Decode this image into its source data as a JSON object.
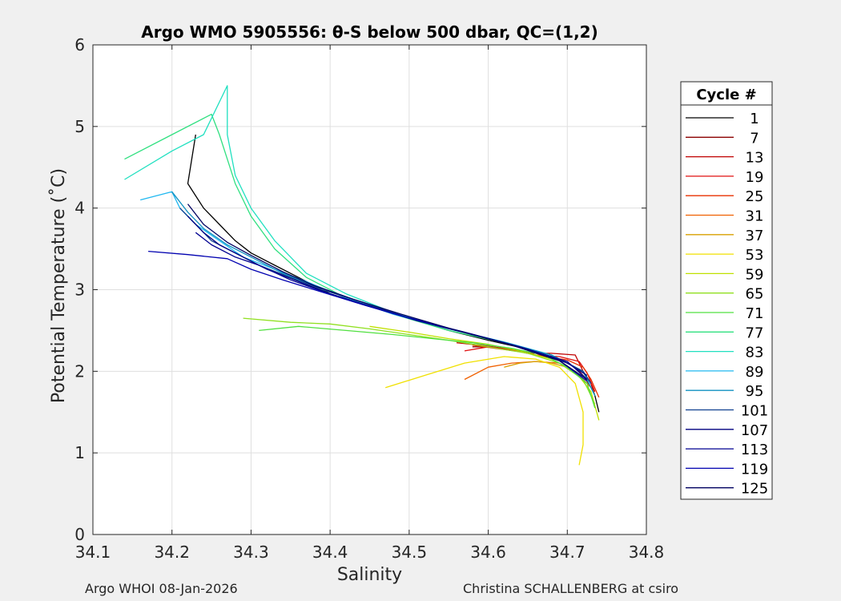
{
  "chart_data": {
    "type": "line",
    "title": "Argo WMO 5905556: θ-S below 500 dbar,  QC=(1,2)",
    "xlabel": "Salinity",
    "ylabel": "Potential Temperature (˚C)",
    "xlim": [
      34.1,
      34.8
    ],
    "ylim": [
      0,
      6
    ],
    "xticks": [
      "34.1",
      "34.2",
      "34.3",
      "34.4",
      "34.5",
      "34.6",
      "34.7",
      "34.8"
    ],
    "yticks": [
      "0",
      "1",
      "2",
      "3",
      "4",
      "5",
      "6"
    ],
    "grid": true,
    "legend": {
      "title": "Cycle #",
      "placement": "right-outside",
      "entries": [
        "1",
        "7",
        "13",
        "19",
        "25",
        "31",
        "37",
        "53",
        "59",
        "65",
        "71",
        "77",
        "83",
        "89",
        "95",
        "101",
        "107",
        "113",
        "119",
        "125"
      ],
      "colors": [
        "#000000",
        "#8b0000",
        "#c00000",
        "#e01010",
        "#e83000",
        "#f06000",
        "#d8a000",
        "#f0e000",
        "#c0e000",
        "#90e020",
        "#50e040",
        "#30e080",
        "#20e0c0",
        "#20b8f0",
        "#1090c0",
        "#104090",
        "#000080",
        "#000090",
        "#0000b0",
        "#000060"
      ]
    },
    "series": [
      {
        "name": "1",
        "x": [
          34.23,
          34.22,
          34.24,
          34.26,
          34.28,
          34.3,
          34.33,
          34.36,
          34.4,
          34.45,
          34.5,
          34.55,
          34.6,
          34.65,
          34.69,
          34.72,
          34.73,
          34.735,
          34.74
        ],
        "y": [
          4.9,
          4.3,
          4.0,
          3.8,
          3.6,
          3.45,
          3.3,
          3.15,
          2.95,
          2.8,
          2.65,
          2.5,
          2.38,
          2.27,
          2.15,
          2.0,
          1.85,
          1.7,
          1.5
        ]
      },
      {
        "name": "7",
        "x": [
          34.58,
          34.6,
          34.63,
          34.66,
          34.69,
          34.71,
          34.72,
          34.73
        ],
        "y": [
          2.3,
          2.3,
          2.27,
          2.22,
          2.15,
          2.05,
          1.95,
          1.8
        ]
      },
      {
        "name": "13",
        "x": [
          34.56,
          34.59,
          34.62,
          34.65,
          34.68,
          34.71,
          34.72,
          34.73,
          34.735
        ],
        "y": [
          2.35,
          2.32,
          2.28,
          2.22,
          2.22,
          2.2,
          2.0,
          1.85,
          1.7
        ]
      },
      {
        "name": "19",
        "x": [
          34.57,
          34.6,
          34.63,
          34.66,
          34.69,
          34.715,
          34.725,
          34.735
        ],
        "y": [
          2.25,
          2.3,
          2.26,
          2.2,
          2.18,
          2.12,
          1.98,
          1.75
        ]
      },
      {
        "name": "25",
        "x": [
          34.58,
          34.61,
          34.64,
          34.67,
          34.7,
          34.72,
          34.73,
          34.74
        ],
        "y": [
          2.32,
          2.28,
          2.24,
          2.18,
          2.14,
          2.05,
          1.9,
          1.68
        ]
      },
      {
        "name": "31",
        "x": [
          34.57,
          34.6,
          34.63,
          34.66,
          34.69,
          34.71,
          34.73
        ],
        "y": [
          1.9,
          2.05,
          2.1,
          2.12,
          2.1,
          2.0,
          1.8
        ]
      },
      {
        "name": "37",
        "x": [
          34.62,
          34.64,
          34.66,
          34.68,
          34.7,
          34.72
        ],
        "y": [
          2.05,
          2.1,
          2.12,
          2.1,
          2.05,
          1.9
        ]
      },
      {
        "name": "53",
        "x": [
          34.47,
          34.52,
          34.57,
          34.62,
          34.66,
          34.69,
          34.71,
          34.72,
          34.72,
          34.715
        ],
        "y": [
          1.8,
          1.95,
          2.1,
          2.18,
          2.15,
          2.05,
          1.85,
          1.5,
          1.1,
          0.85
        ]
      },
      {
        "name": "59",
        "x": [
          34.45,
          34.5,
          34.55,
          34.6,
          34.64,
          34.68,
          34.71,
          34.73,
          34.74
        ],
        "y": [
          2.55,
          2.48,
          2.4,
          2.33,
          2.25,
          2.15,
          2.0,
          1.75,
          1.4
        ]
      },
      {
        "name": "65",
        "x": [
          34.29,
          34.35,
          34.4,
          34.45,
          34.5,
          34.55,
          34.6,
          34.65,
          34.69,
          34.72,
          34.735
        ],
        "y": [
          2.65,
          2.6,
          2.58,
          2.52,
          2.45,
          2.38,
          2.3,
          2.22,
          2.1,
          1.9,
          1.6
        ]
      },
      {
        "name": "71",
        "x": [
          34.31,
          34.36,
          34.42,
          34.48,
          34.53,
          34.58,
          34.63,
          34.67,
          34.7,
          34.725,
          34.735
        ],
        "y": [
          2.5,
          2.55,
          2.5,
          2.45,
          2.4,
          2.35,
          2.28,
          2.2,
          2.05,
          1.85,
          1.55
        ]
      },
      {
        "name": "77",
        "x": [
          34.14,
          34.2,
          34.25,
          34.26,
          34.27,
          34.28,
          34.3,
          34.33,
          34.37,
          34.42,
          34.48,
          34.55,
          34.62,
          34.68,
          34.72,
          34.735
        ],
        "y": [
          4.6,
          4.9,
          5.15,
          4.9,
          4.6,
          4.3,
          3.9,
          3.5,
          3.15,
          2.9,
          2.7,
          2.5,
          2.35,
          2.2,
          2.0,
          1.7
        ]
      },
      {
        "name": "83",
        "x": [
          34.14,
          34.2,
          34.24,
          34.27,
          34.27,
          34.28,
          34.3,
          34.33,
          34.37,
          34.42,
          34.48,
          34.55,
          34.62,
          34.68,
          34.72,
          34.735
        ],
        "y": [
          4.35,
          4.7,
          4.9,
          5.5,
          4.9,
          4.4,
          4.0,
          3.6,
          3.2,
          2.95,
          2.72,
          2.52,
          2.36,
          2.2,
          2.0,
          1.7
        ]
      },
      {
        "name": "89",
        "x": [
          34.16,
          34.2,
          34.21,
          34.23,
          34.26,
          34.29,
          34.33,
          34.37,
          34.42,
          34.48,
          34.55,
          34.62,
          34.68,
          34.72,
          34.735
        ],
        "y": [
          4.1,
          4.2,
          4.0,
          3.8,
          3.6,
          3.4,
          3.25,
          3.1,
          2.9,
          2.7,
          2.52,
          2.36,
          2.2,
          2.0,
          1.7
        ]
      },
      {
        "name": "95",
        "x": [
          34.2,
          34.22,
          34.24,
          34.27,
          34.3,
          34.34,
          34.38,
          34.43,
          34.49,
          34.56,
          34.63,
          34.68,
          34.72,
          34.735
        ],
        "y": [
          4.2,
          3.95,
          3.75,
          3.55,
          3.4,
          3.2,
          3.05,
          2.88,
          2.68,
          2.5,
          2.33,
          2.2,
          2.0,
          1.7
        ]
      },
      {
        "name": "101",
        "x": [
          34.21,
          34.23,
          34.25,
          34.28,
          34.31,
          34.35,
          34.39,
          34.44,
          34.5,
          34.57,
          34.64,
          34.69,
          34.72,
          34.73
        ],
        "y": [
          4.0,
          3.8,
          3.6,
          3.45,
          3.3,
          3.15,
          3.0,
          2.85,
          2.65,
          2.48,
          2.3,
          2.15,
          2.0,
          1.85
        ]
      },
      {
        "name": "107",
        "x": [
          34.22,
          34.24,
          34.26,
          34.29,
          34.32,
          34.36,
          34.4,
          34.45,
          34.51,
          34.58,
          34.65,
          34.7,
          34.725
        ],
        "y": [
          3.9,
          3.7,
          3.55,
          3.4,
          3.25,
          3.1,
          2.95,
          2.8,
          2.62,
          2.45,
          2.27,
          2.1,
          1.95
        ]
      },
      {
        "name": "113",
        "x": [
          34.23,
          34.25,
          34.28,
          34.31,
          34.35,
          34.39,
          34.44,
          34.5,
          34.57,
          34.64,
          34.7,
          34.725
        ],
        "y": [
          3.7,
          3.55,
          3.4,
          3.3,
          3.12,
          2.98,
          2.82,
          2.65,
          2.48,
          2.3,
          2.12,
          1.9
        ]
      },
      {
        "name": "119",
        "x": [
          34.17,
          34.22,
          34.27,
          34.3,
          34.34,
          34.38,
          34.43,
          34.49,
          34.56,
          34.63,
          34.69,
          34.725
        ],
        "y": [
          3.47,
          3.43,
          3.38,
          3.25,
          3.12,
          3.0,
          2.85,
          2.68,
          2.5,
          2.32,
          2.13,
          1.88
        ]
      },
      {
        "name": "125",
        "x": [
          34.22,
          34.24,
          34.27,
          34.3,
          34.34,
          34.38,
          34.43,
          34.49,
          34.56,
          34.63,
          34.69,
          34.725
        ],
        "y": [
          4.05,
          3.8,
          3.58,
          3.42,
          3.22,
          3.05,
          2.88,
          2.7,
          2.5,
          2.32,
          2.13,
          1.9
        ]
      }
    ]
  },
  "footer": {
    "left": "Argo WHOI 08-Jan-2026",
    "right": "Christina SCHALLENBERG at csiro"
  }
}
